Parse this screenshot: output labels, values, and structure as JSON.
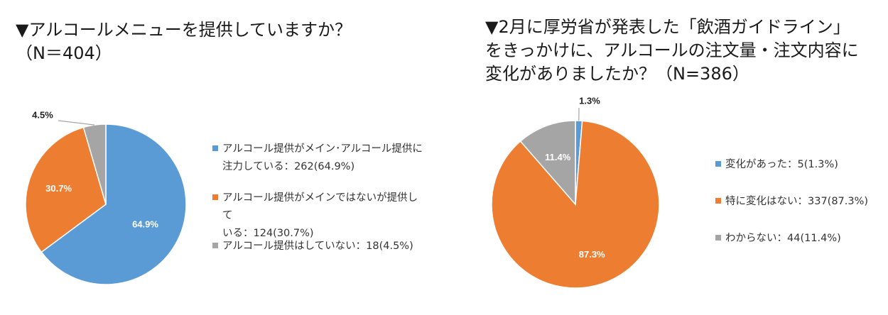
{
  "chart_data": [
    {
      "type": "pie",
      "title": "▼アルコールメニューを提供していますか？\n（N＝404）",
      "categories": [
        "アルコール提供がメイン･アルコール提供に注力している",
        "アルコール提供がメインではないが提供している",
        "アルコール提供はしていない"
      ],
      "values": [
        64.9,
        30.7,
        4.5
      ],
      "counts": [
        262,
        124,
        18
      ],
      "data_labels": [
        "64.9%",
        "30.7%",
        "4.5%"
      ],
      "legend": [
        "アルコール提供がメイン･アルコール提供に\n注力している：262(64.9%)",
        "アルコール提供がメインではないが提供して\nいる：124(30.7%)",
        "アルコール提供はしていない：18(4.5%)"
      ],
      "colors": [
        "#5B9BD5",
        "#ED7D31",
        "#A5A5A5"
      ],
      "legend_position": "right"
    },
    {
      "type": "pie",
      "title": "▼2月に厚労省が発表した「飲酒ガイドライン」\nをきっかけに、アルコールの注文量・注文内容に\n変化がありましたか？（N=386）",
      "categories": [
        "変化があった",
        "特に変化はない",
        "わからない"
      ],
      "values": [
        1.3,
        87.3,
        11.4
      ],
      "counts": [
        5,
        337,
        44
      ],
      "data_labels": [
        "1.3%",
        "87.3%",
        "11.4%"
      ],
      "legend": [
        "変化があった：5(1.3%)",
        "特に変化はない：337(87.3%)",
        "わからない：44(11.4%)"
      ],
      "colors": [
        "#5B9BD5",
        "#ED7D31",
        "#A5A5A5"
      ],
      "legend_position": "right"
    }
  ]
}
